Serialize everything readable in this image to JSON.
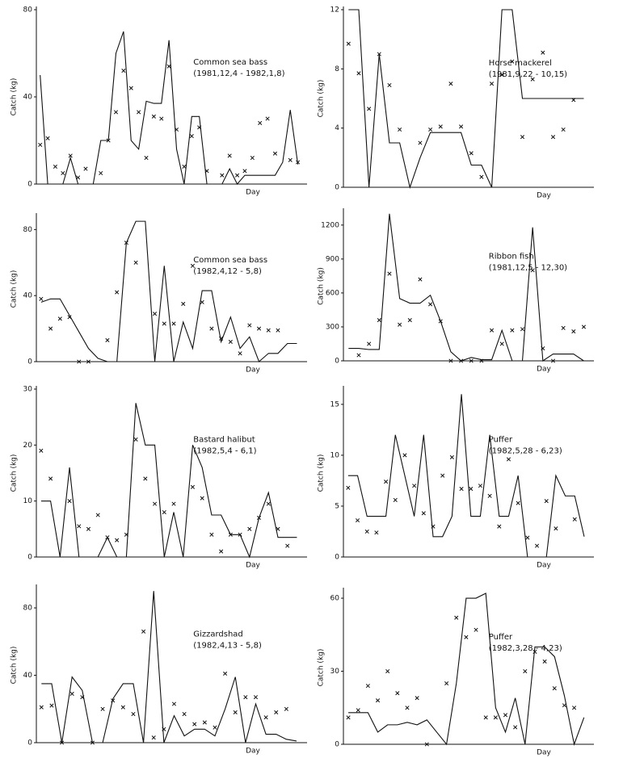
{
  "chart_data": [
    {
      "type": "line",
      "title": "Common sea bass",
      "subtitle": "(1981,12,4 - 1982,1,8)",
      "y_label": "Catch (kg)",
      "x_label": "Day",
      "ylim": [
        0,
        80
      ],
      "yticks": [
        0,
        40,
        80
      ],
      "color": "#111111",
      "series": [
        {
          "style": "line",
          "values": [
            50,
            0,
            0,
            0,
            12,
            0,
            0,
            0,
            20,
            20,
            60,
            70,
            20,
            16,
            38,
            37,
            37,
            66,
            16,
            0,
            31,
            31,
            0,
            0,
            0,
            7,
            0,
            4,
            4,
            4,
            4,
            4,
            10,
            34,
            9
          ]
        },
        {
          "style": "marker",
          "values": [
            18,
            21,
            8,
            5,
            13,
            3,
            7,
            null,
            5,
            20,
            33,
            52,
            44,
            33,
            12,
            31,
            30,
            54,
            25,
            8,
            22,
            26,
            6,
            null,
            4,
            13,
            4,
            6,
            12,
            28,
            30,
            14,
            null,
            11,
            10
          ]
        }
      ]
    },
    {
      "type": "line",
      "title": "Horse mackerel",
      "subtitle": "(1981,9,22 - 10,15)",
      "y_label": "Catch (kg)",
      "x_label": "Day",
      "ylim": [
        0,
        12
      ],
      "yticks": [
        0,
        4,
        8,
        12
      ],
      "color": "#111111",
      "series": [
        {
          "style": "line",
          "values": [
            12,
            12,
            0,
            9,
            3,
            3,
            0,
            2,
            3.7,
            3.7,
            3.7,
            3.7,
            1.5,
            1.5,
            0,
            12,
            12,
            6,
            6,
            6,
            6,
            6,
            6,
            6
          ]
        },
        {
          "style": "marker",
          "values": [
            9.7,
            7.7,
            5.3,
            9.0,
            6.9,
            3.9,
            null,
            3.0,
            3.9,
            4.1,
            7.0,
            4.1,
            2.3,
            0.7,
            7.0,
            7.6,
            8.5,
            3.4,
            7.3,
            9.1,
            3.4,
            3.9,
            5.9,
            null
          ]
        }
      ]
    },
    {
      "type": "line",
      "title": "Common sea bass",
      "subtitle": "(1982,4,12 - 5,8)",
      "y_label": "Catch (kg)",
      "x_label": "Day",
      "ylim": [
        0,
        88
      ],
      "yticks": [
        0,
        40,
        80
      ],
      "color": "#111111",
      "series": [
        {
          "style": "line",
          "values": [
            36,
            38,
            38,
            28,
            18,
            8,
            2,
            0,
            0,
            72,
            85,
            85,
            0,
            58,
            0,
            24,
            8,
            43,
            43,
            12,
            27,
            8,
            15,
            0,
            5,
            5,
            11,
            11
          ]
        },
        {
          "style": "marker",
          "values": [
            38,
            20,
            26,
            27,
            0,
            0,
            null,
            13,
            42,
            72,
            60,
            null,
            29,
            23,
            23,
            35,
            58,
            36,
            20,
            14,
            12,
            5,
            22,
            20,
            19,
            19,
            null,
            null
          ]
        }
      ]
    },
    {
      "type": "line",
      "title": "Ribbon fish",
      "subtitle": "(1981,12,5 - 12,30)",
      "y_label": "Catch (kg)",
      "x_label": "Day",
      "ylim": [
        0,
        1320
      ],
      "yticks": [
        0,
        300,
        600,
        900,
        1200
      ],
      "color": "#111111",
      "series": [
        {
          "style": "line",
          "values": [
            110,
            110,
            100,
            100,
            1300,
            550,
            510,
            510,
            580,
            350,
            80,
            0,
            30,
            10,
            10,
            270,
            0,
            0,
            1180,
            0,
            60,
            60,
            60,
            0
          ]
        },
        {
          "style": "marker",
          "values": [
            null,
            50,
            150,
            360,
            770,
            320,
            360,
            720,
            500,
            350,
            0,
            0,
            0,
            0,
            270,
            150,
            270,
            280,
            800,
            110,
            0,
            290,
            260,
            300
          ]
        }
      ]
    },
    {
      "type": "line",
      "title": "Bastard halibut",
      "subtitle": "(1982,5,4 - 6,1)",
      "y_label": "Catch (kg)",
      "x_label": "Day",
      "ylim": [
        0,
        30
      ],
      "yticks": [
        0,
        10,
        20,
        30
      ],
      "color": "#111111",
      "series": [
        {
          "style": "line",
          "values": [
            10,
            10,
            0,
            16,
            0,
            0,
            0,
            3.5,
            0,
            0,
            27.5,
            20,
            20,
            0,
            8,
            0,
            20,
            16,
            7.5,
            7.5,
            4,
            4,
            0,
            7,
            11.5,
            3.5,
            3.5,
            3.5
          ]
        },
        {
          "style": "marker",
          "values": [
            19,
            14,
            null,
            10,
            5.5,
            5,
            7.5,
            3.5,
            3,
            4,
            21,
            14,
            9.5,
            8,
            9.5,
            null,
            12.5,
            10.5,
            4,
            1,
            4,
            4,
            5,
            7,
            9.5,
            5,
            2,
            null
          ]
        }
      ]
    },
    {
      "type": "line",
      "title": "Puffer",
      "subtitle": "(1982,5,28 - 6,23)",
      "y_label": "Catch (kg)",
      "x_label": "Day",
      "ylim": [
        0,
        16.5
      ],
      "yticks": [
        0,
        5,
        10,
        15
      ],
      "color": "#111111",
      "series": [
        {
          "style": "line",
          "values": [
            8,
            8,
            4,
            4,
            4,
            12,
            8,
            4,
            12,
            2,
            2,
            4,
            16,
            4,
            4,
            12,
            4,
            4,
            8,
            0,
            0,
            0,
            8,
            6,
            6,
            2
          ]
        },
        {
          "style": "marker",
          "values": [
            6.8,
            3.6,
            2.5,
            2.4,
            7.4,
            5.6,
            10,
            7,
            4.3,
            3,
            8,
            9.8,
            6.7,
            6.7,
            7,
            6,
            3,
            9.6,
            5.3,
            1.9,
            1.1,
            5.5,
            2.8,
            null,
            3.7,
            null
          ]
        }
      ]
    },
    {
      "type": "line",
      "title": "Gizzardshad",
      "subtitle": "(1982,4,13 - 5,8)",
      "y_label": "Catch (kg)",
      "x_label": "Day",
      "ylim": [
        0,
        92
      ],
      "yticks": [
        0,
        40,
        80
      ],
      "color": "#111111",
      "series": [
        {
          "style": "line",
          "values": [
            35,
            35,
            0,
            39,
            31,
            0,
            0,
            26,
            35,
            35,
            0,
            90,
            0,
            16,
            4,
            8,
            8,
            4,
            20,
            39,
            0,
            23,
            5,
            5,
            2,
            1
          ]
        },
        {
          "style": "marker",
          "values": [
            21,
            22,
            0,
            29,
            27,
            0,
            20,
            25,
            21,
            17,
            66,
            3,
            8,
            23,
            17,
            11,
            12,
            9,
            41,
            18,
            27,
            27,
            15,
            18,
            20,
            null
          ]
        }
      ]
    },
    {
      "type": "line",
      "title": "Puffer",
      "subtitle": "(1982,3,28 - 4,23)",
      "y_label": "Catch (kg)",
      "x_label": "Day",
      "ylim": [
        0,
        63
      ],
      "yticks": [
        0,
        30,
        60
      ],
      "color": "#111111",
      "series": [
        {
          "style": "line",
          "values": [
            13,
            13,
            13,
            5,
            8,
            8,
            9,
            8,
            10,
            5,
            0,
            25,
            60,
            60,
            62,
            15,
            5,
            19,
            0,
            40,
            40,
            36,
            20,
            0,
            11
          ]
        },
        {
          "style": "marker",
          "values": [
            11,
            14,
            24,
            18,
            30,
            21,
            15,
            19,
            0,
            null,
            25,
            52,
            44,
            47,
            11,
            11,
            12,
            7,
            30,
            38,
            34,
            23,
            16,
            15,
            null
          ]
        }
      ]
    }
  ]
}
